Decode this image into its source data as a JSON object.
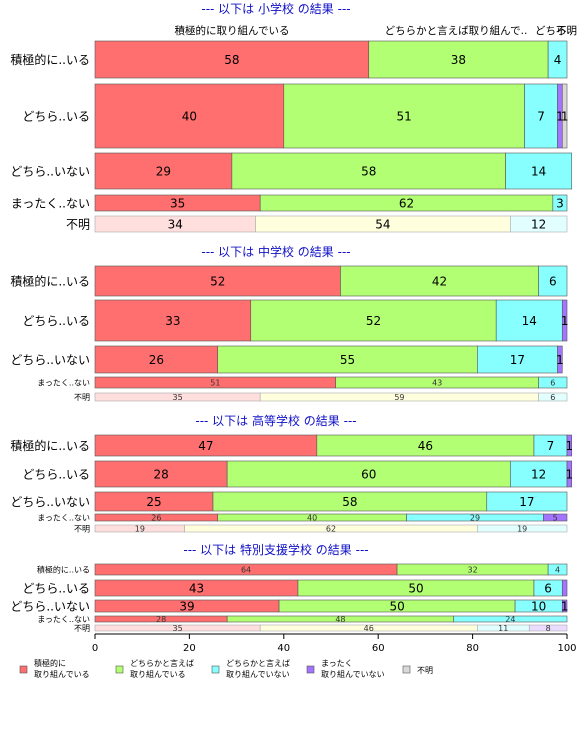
{
  "chart_data": {
    "type": "bar",
    "orientation": "horizontal",
    "stacked": true,
    "xlim": [
      0,
      100
    ],
    "xticks": [
      0,
      20,
      40,
      60,
      80,
      100
    ],
    "colors": {
      "積極的に取り組んでいる": "#ff6f6f",
      "どちらかと言えば取り組んでいる": "#b3ff73",
      "どちらかと言えば取り組んでいない": "#87ffff",
      "まったく取り組んでいない": "#a374ff",
      "不明": "#d9d9d9"
    },
    "top_labels": [
      "積極的に取り組んでいる",
      "どちらかと言えば取り組んで..",
      "どちら..",
      "不明"
    ],
    "panels": [
      {
        "title": "--- 以下は 小学校 の結果 ---",
        "rows": [
          {
            "label": "積極的に..いる",
            "values": [
              58,
              38,
              4,
              0,
              0
            ],
            "labels": [
              "58",
              "38",
              "4",
              "",
              ""
            ]
          },
          {
            "label": "どちら..いる",
            "values": [
              40,
              51,
              7,
              1,
              1
            ],
            "labels": [
              "40",
              "51",
              "7",
              "1",
              "1"
            ]
          },
          {
            "label": "どちら..いない",
            "values": [
              29,
              58,
              14,
              0,
              0
            ],
            "labels": [
              "29",
              "58",
              "14",
              "",
              ""
            ]
          },
          {
            "label": "まったく..ない",
            "values": [
              35,
              62,
              3,
              0,
              0
            ],
            "labels": [
              "35",
              "62",
              "3",
              "",
              ""
            ]
          },
          {
            "label": "不明",
            "values": [
              34,
              54,
              12,
              0,
              0
            ],
            "labels": [
              "34",
              "54",
              "12",
              "",
              ""
            ],
            "faded": true
          }
        ]
      },
      {
        "title": "--- 以下は 中学校 の結果 ---",
        "rows": [
          {
            "label": "積極的に..いる",
            "values": [
              52,
              42,
              6,
              0,
              0
            ],
            "labels": [
              "52",
              "42",
              "6",
              "",
              ""
            ]
          },
          {
            "label": "どちら..いる",
            "values": [
              33,
              52,
              14,
              1,
              0
            ],
            "labels": [
              "33",
              "52",
              "14",
              "1",
              ""
            ]
          },
          {
            "label": "どちら..いない",
            "values": [
              26,
              55,
              17,
              1,
              0
            ],
            "labels": [
              "26",
              "55",
              "17",
              "1",
              ""
            ]
          },
          {
            "label": "まったく..ない",
            "values": [
              51,
              43,
              6,
              0,
              0
            ],
            "labels": [
              "51",
              "43",
              "6",
              "",
              ""
            ]
          },
          {
            "label": "不明",
            "values": [
              35,
              59,
              6,
              0,
              0
            ],
            "labels": [
              "35",
              "59",
              "6",
              "",
              ""
            ],
            "faded": true
          }
        ]
      },
      {
        "title": "--- 以下は 高等学校 の結果 ---",
        "rows": [
          {
            "label": "積極的に..いる",
            "values": [
              47,
              46,
              7,
              1,
              0
            ],
            "labels": [
              "47",
              "46",
              "7",
              "1",
              ""
            ]
          },
          {
            "label": "どちら..いる",
            "values": [
              28,
              60,
              12,
              1,
              0
            ],
            "labels": [
              "28",
              "60",
              "12",
              "1",
              ""
            ]
          },
          {
            "label": "どちら..いない",
            "values": [
              25,
              58,
              17,
              0,
              0
            ],
            "labels": [
              "25",
              "58",
              "17",
              "",
              ""
            ]
          },
          {
            "label": "まったく..ない",
            "values": [
              26,
              40,
              29,
              5,
              0
            ],
            "labels": [
              "26",
              "40",
              "29",
              "5",
              ""
            ]
          },
          {
            "label": "不明",
            "values": [
              19,
              62,
              19,
              0,
              0
            ],
            "labels": [
              "19",
              "62",
              "19",
              "",
              ""
            ],
            "faded": true
          }
        ]
      },
      {
        "title": "--- 以下は 特別支援学校 の結果 ---",
        "rows": [
          {
            "label": "積極的に..いる",
            "values": [
              64,
              32,
              4,
              0,
              0
            ],
            "labels": [
              "64",
              "32",
              "4",
              "",
              ""
            ]
          },
          {
            "label": "どちら..いる",
            "values": [
              43,
              50,
              6,
              1,
              0
            ],
            "labels": [
              "43",
              "50",
              "6",
              "",
              ""
            ]
          },
          {
            "label": "どちら..いない",
            "values": [
              39,
              50,
              10,
              1,
              0
            ],
            "labels": [
              "39",
              "50",
              "10",
              "1",
              ""
            ]
          },
          {
            "label": "まったく..ない",
            "values": [
              28,
              48,
              24,
              0,
              0
            ],
            "labels": [
              "28",
              "48",
              "24",
              "",
              ""
            ]
          },
          {
            "label": "不明",
            "values": [
              35,
              46,
              11,
              8,
              0
            ],
            "labels": [
              "35",
              "46",
              "11",
              "8",
              ""
            ],
            "faded": true
          }
        ]
      }
    ],
    "legend": [
      {
        "text": "積極的に\n取り組んでいる",
        "color": "#ff6f6f"
      },
      {
        "text": "どちらかと言えば\n取り組んでいる",
        "color": "#b3ff73"
      },
      {
        "text": "どちらかと言えば\n取り組んでいない",
        "color": "#87ffff"
      },
      {
        "text": "まったく\n取り組んでいない",
        "color": "#a374ff"
      },
      {
        "text": "不明",
        "color": "#d9d9d9"
      }
    ]
  }
}
